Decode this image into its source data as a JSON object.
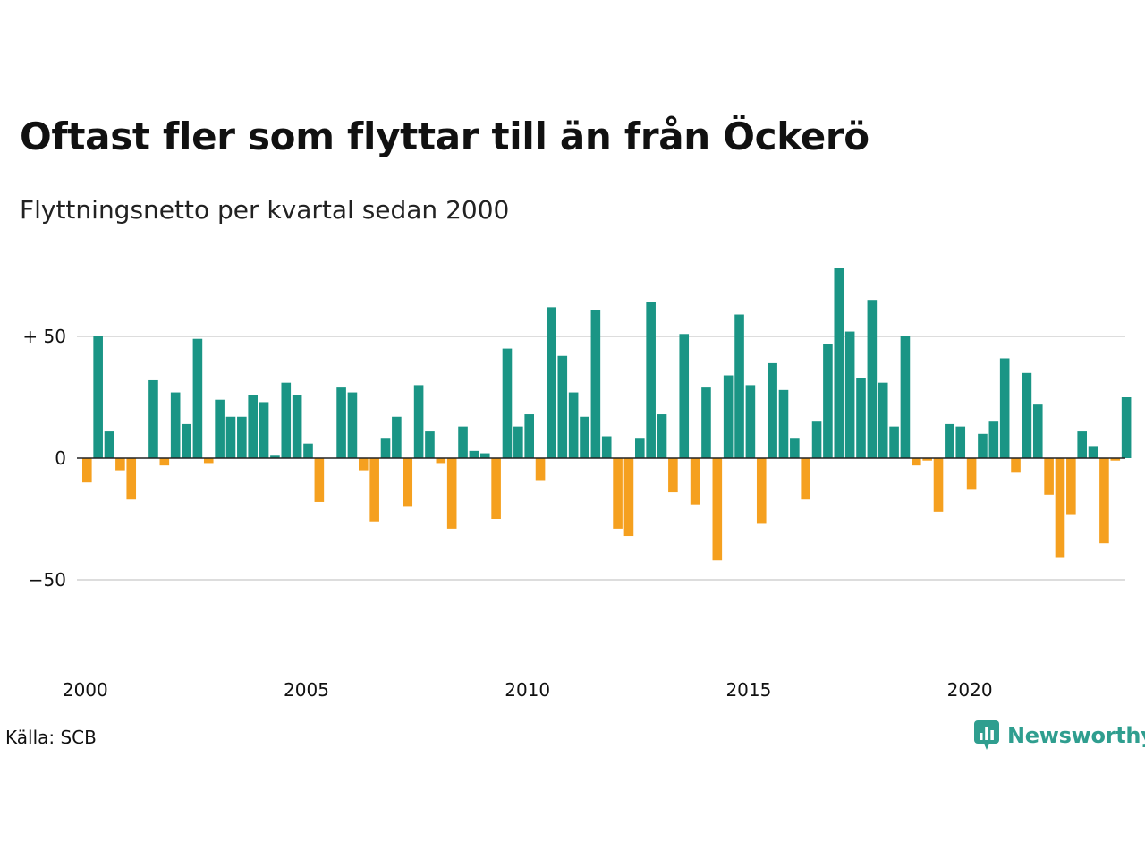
{
  "header": {
    "title": "Oftast fler som flyttar till än från Öckerö",
    "subtitle": "Flyttningsnetto per kvartal sedan 2000"
  },
  "footer": {
    "source": "Källa: SCB",
    "brand": "Newsworthy"
  },
  "colors": {
    "positive": "#1a9585",
    "negative": "#f5a01f",
    "grid": "#dddddd",
    "baseline": "#222222",
    "brand": "#2f9e8f"
  },
  "chart_data": {
    "type": "bar",
    "x_start": "2000 Q1",
    "periods_per_year": 4,
    "values": [
      -10,
      50,
      11,
      -5,
      -17,
      0,
      32,
      -3,
      27,
      14,
      49,
      -2,
      24,
      17,
      17,
      26,
      23,
      1,
      31,
      26,
      6,
      -18,
      0,
      29,
      27,
      -5,
      -26,
      8,
      17,
      -20,
      30,
      11,
      -2,
      -29,
      13,
      3,
      2,
      -25,
      45,
      13,
      18,
      -9,
      62,
      42,
      27,
      17,
      61,
      9,
      -29,
      -32,
      8,
      64,
      18,
      -14,
      51,
      -19,
      29,
      -42,
      34,
      59,
      30,
      -27,
      39,
      28,
      8,
      -17,
      15,
      47,
      78,
      52,
      33,
      65,
      31,
      13,
      50,
      -3,
      -1,
      -22,
      14,
      13,
      -13,
      10,
      15,
      41,
      -6,
      35,
      22,
      -15,
      -41,
      -23,
      11,
      5,
      -35,
      -1,
      25
    ],
    "y_ticks": [
      {
        "value": 50,
        "label": "+ 50"
      },
      {
        "value": 0,
        "label": "0"
      },
      {
        "value": -50,
        "label": "−50"
      }
    ],
    "x_ticks": [
      {
        "year": 2000,
        "label": "2000"
      },
      {
        "year": 2005,
        "label": "2005"
      },
      {
        "year": 2010,
        "label": "2010"
      },
      {
        "year": 2015,
        "label": "2015"
      },
      {
        "year": 2020,
        "label": "2020"
      }
    ],
    "grid": true
  }
}
